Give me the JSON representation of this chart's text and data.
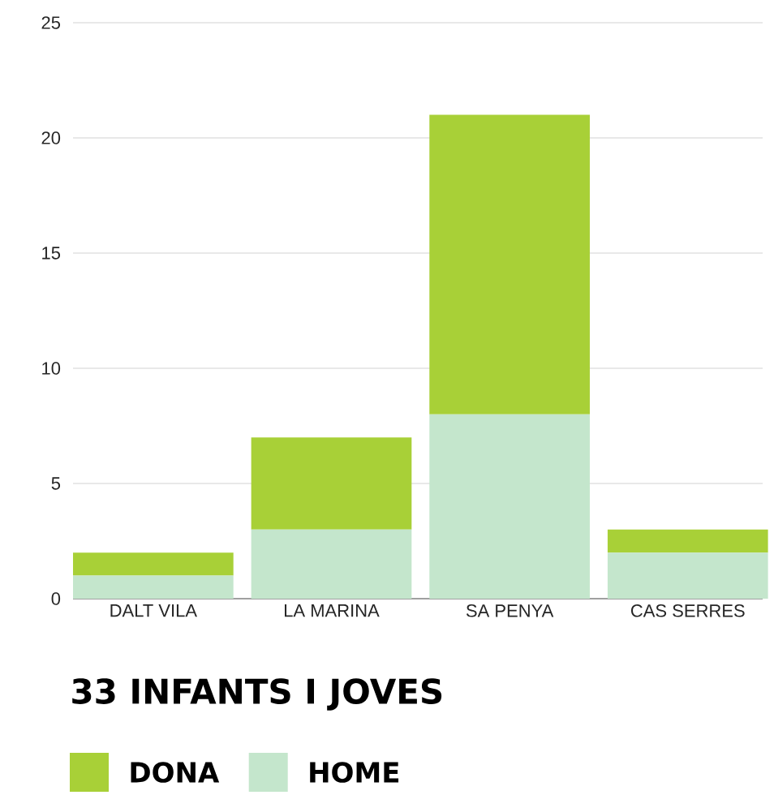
{
  "chart_data": {
    "type": "bar",
    "title": "33 INFANTS I JOVES",
    "stacked": true,
    "categories": [
      "DALT VILA",
      "LA MARINA",
      "SA PENYA",
      "CAS SERRES"
    ],
    "series": [
      {
        "name": "HOME",
        "color": "#c4e6cc",
        "values": [
          1,
          3,
          8,
          2
        ]
      },
      {
        "name": "DONA",
        "color": "#a8d037",
        "values": [
          1,
          4,
          13,
          1
        ]
      }
    ],
    "ylim": [
      0,
      25
    ],
    "yticks": [
      0,
      5,
      10,
      15,
      20,
      25
    ],
    "grid": "y",
    "legend": "bottom left"
  }
}
